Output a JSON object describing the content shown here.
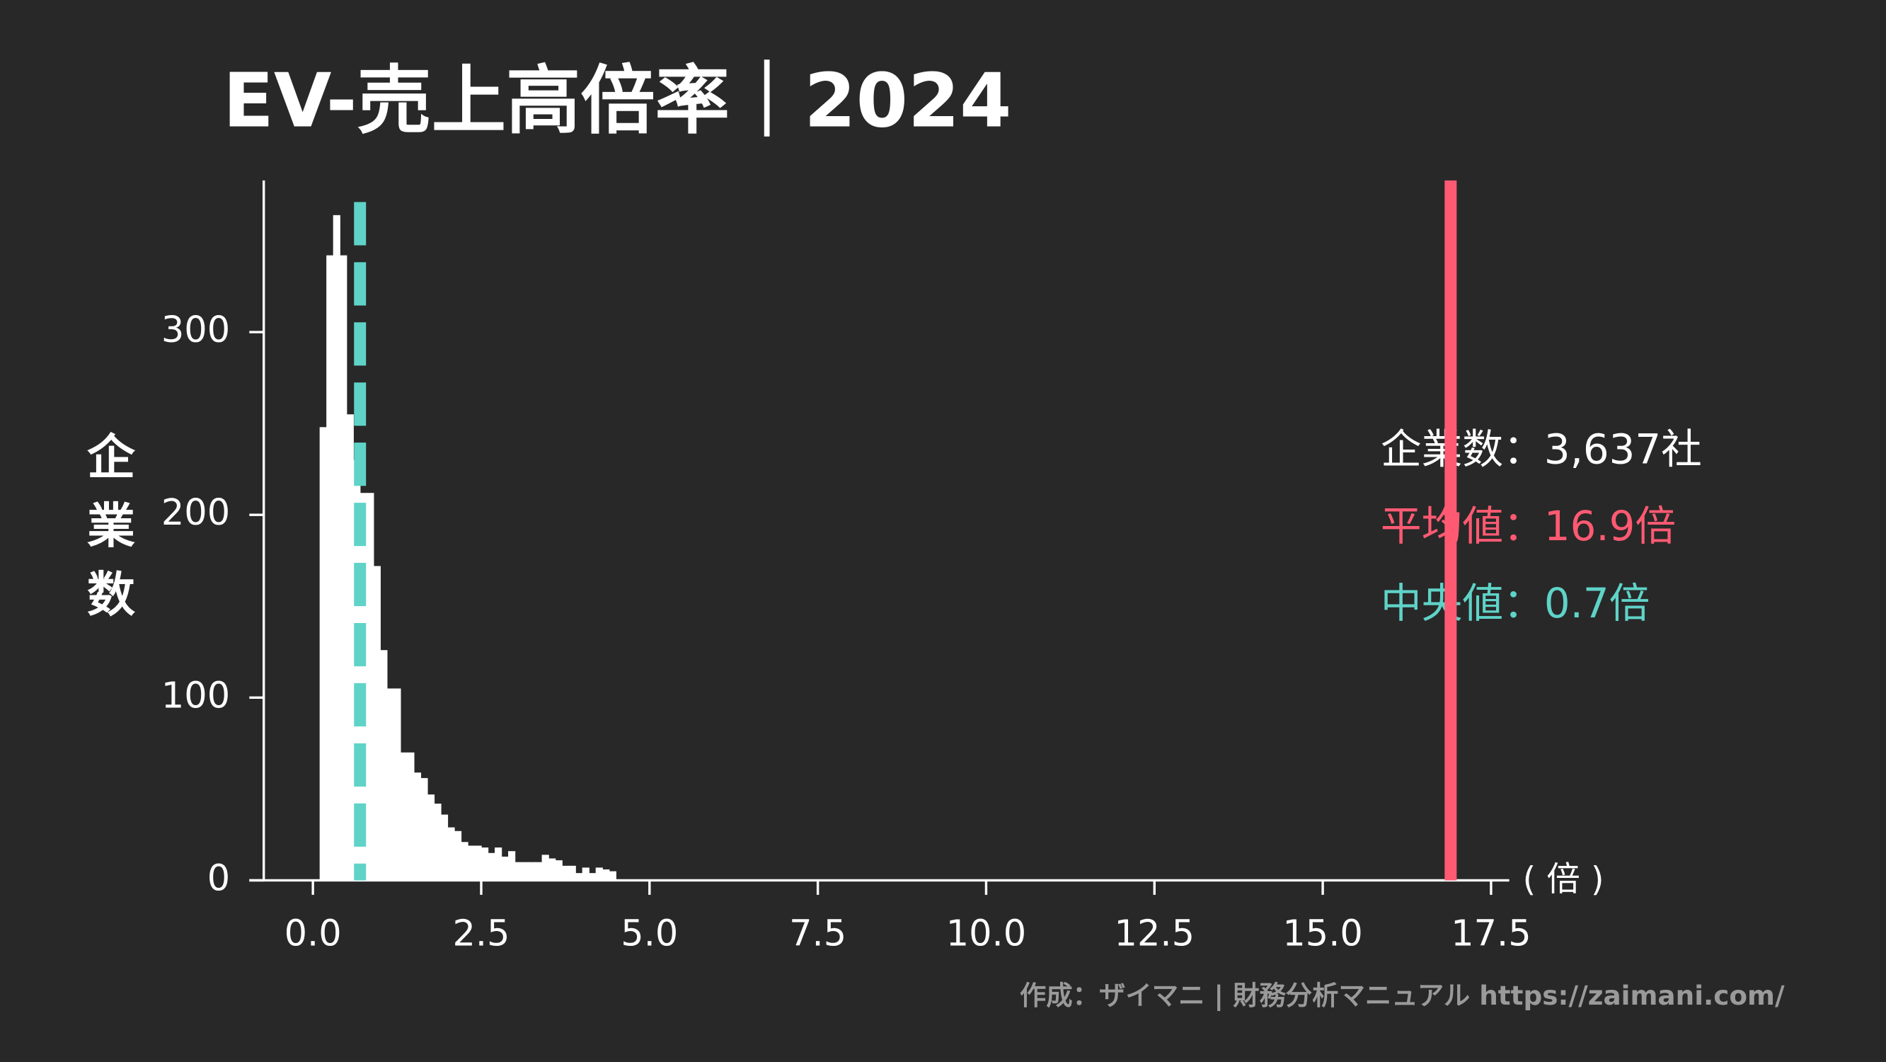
{
  "chart_data": {
    "type": "histogram",
    "title": "EV-売上高倍率｜2024",
    "ylabel": "企業数",
    "xlabel": "( 倍 )",
    "bins": [
      0.1,
      0.2,
      0.3,
      0.4,
      0.5,
      0.6,
      0.7,
      0.8,
      0.9,
      1.0,
      1.1,
      1.2,
      1.3,
      1.4,
      1.5,
      1.6,
      1.7,
      1.8,
      1.9,
      2.0,
      2.1,
      2.2,
      2.3,
      2.4,
      2.5,
      2.6,
      2.7,
      2.8,
      2.9,
      3.0,
      3.1,
      3.2,
      3.3,
      3.4,
      3.5,
      3.6,
      3.7,
      3.8,
      3.9,
      4.0,
      4.1,
      4.2,
      4.3,
      4.4,
      4.5
    ],
    "counts": [
      248,
      342,
      364,
      342,
      255,
      230,
      212,
      212,
      172,
      126,
      105,
      105,
      70,
      70,
      59,
      56,
      47,
      42,
      36,
      29,
      27,
      21,
      19,
      19,
      18,
      15,
      18,
      13,
      16,
      10,
      10,
      10,
      10,
      14,
      12,
      11,
      8,
      8,
      4,
      7,
      4,
      7,
      6,
      5
    ],
    "color": "#ffffff",
    "xlim": [
      -0.73,
      17.77
    ],
    "ylim": [
      0,
      383
    ],
    "xticks": [
      {
        "value": 0,
        "label": "0.0"
      },
      {
        "value": 2.5,
        "label": "2.5"
      },
      {
        "value": 5,
        "label": "5.0"
      },
      {
        "value": 7.5,
        "label": "7.5"
      },
      {
        "value": 10,
        "label": "10.0"
      },
      {
        "value": 12.5,
        "label": "12.5"
      },
      {
        "value": 15,
        "label": "15.0"
      },
      {
        "value": 17.5,
        "label": "17.5"
      }
    ],
    "yticks": [
      0,
      100,
      200,
      300
    ],
    "count_label": "企業数：3,637社",
    "mean": {
      "value": 16.9,
      "label": "平均値：16.9倍",
      "color": "#ff5a72"
    },
    "median": {
      "value": 0.7,
      "label": "中央値：0.7倍",
      "color": "#5fd3c8"
    },
    "credit": "作成：ザイマニ | 財務分析マニュアル https://zaimani.com/"
  }
}
